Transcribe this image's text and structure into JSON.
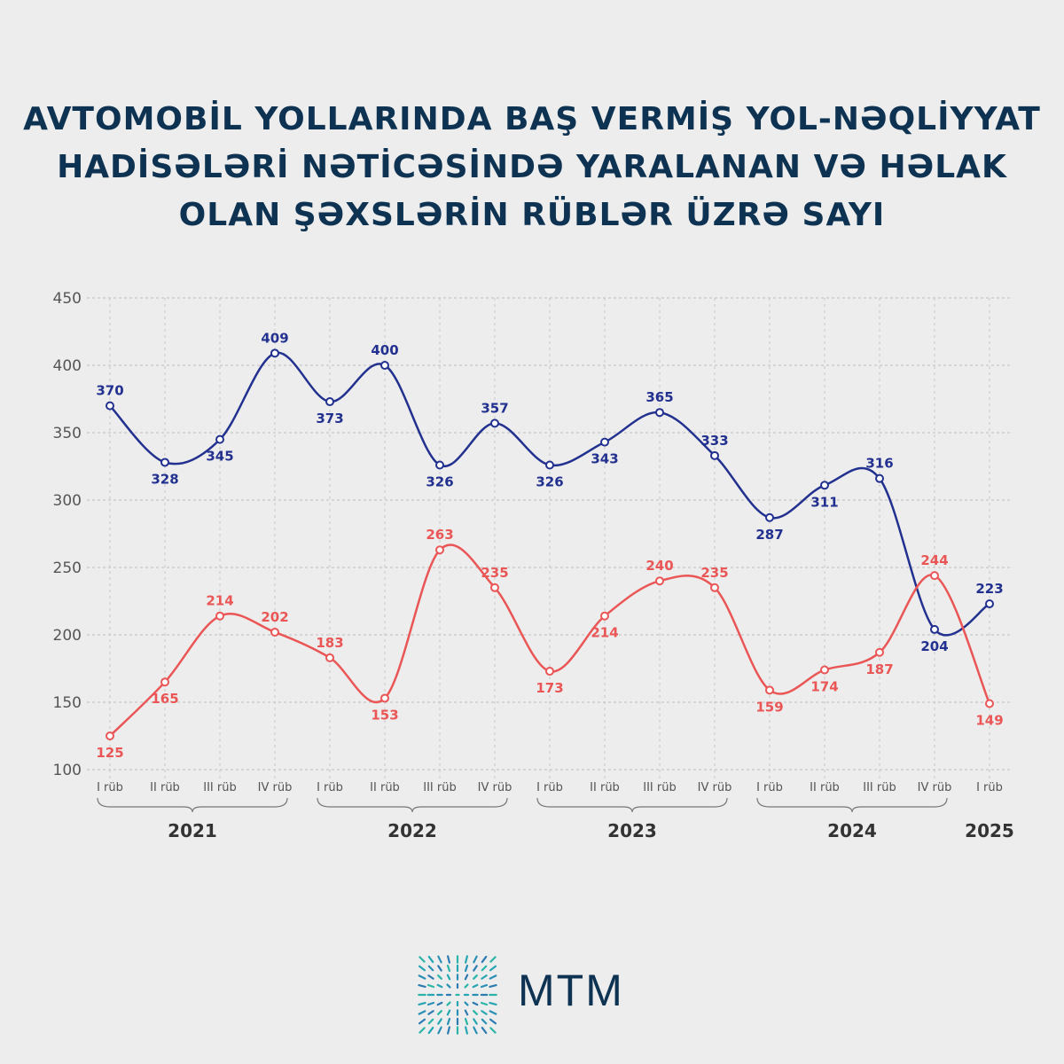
{
  "title_lines": [
    "AVTOMOBİL YOLLARINDA BAŞ VERMİŞ YOL-NƏQLİYYAT",
    "HADİSƏLƏRİ NƏTİCƏSİNDƏ YARALANAN VƏ HƏLAK",
    "OLAN ŞƏXSLƏRİN RÜBLƏR ÜZRƏ SAYI"
  ],
  "logo_text": "MTM",
  "colors": {
    "blue": "#22318f",
    "red": "#ea5656",
    "title": "#0e3352",
    "grid": "#c4c4c4"
  },
  "chart_data": {
    "type": "line",
    "categories": [
      "I rüb",
      "II rüb",
      "III rüb",
      "IV rüb",
      "I rüb",
      "II rüb",
      "III rüb",
      "IV rüb",
      "I rüb",
      "II rüb",
      "III rüb",
      "IV rüb",
      "I rüb",
      "II rüb",
      "III rüb",
      "IV rüb",
      "I rüb"
    ],
    "year_groups": [
      {
        "label": "2021",
        "start": 0,
        "end": 3
      },
      {
        "label": "2022",
        "start": 4,
        "end": 7
      },
      {
        "label": "2023",
        "start": 8,
        "end": 11
      },
      {
        "label": "2024",
        "start": 12,
        "end": 15
      },
      {
        "label": "2025",
        "start": 16,
        "end": 16
      }
    ],
    "series": [
      {
        "color": "#22318f",
        "values": [
          370,
          328,
          345,
          409,
          373,
          400,
          326,
          357,
          326,
          343,
          365,
          333,
          287,
          311,
          316,
          204,
          223
        ]
      },
      {
        "color": "#ea5656",
        "values": [
          125,
          165,
          214,
          202,
          183,
          153,
          263,
          235,
          173,
          214,
          240,
          235,
          159,
          174,
          187,
          244,
          149
        ]
      }
    ],
    "ylim": [
      100,
      450
    ],
    "yticks": [
      100,
      150,
      200,
      250,
      300,
      350,
      400,
      450
    ],
    "grid": true,
    "legend": "none"
  }
}
